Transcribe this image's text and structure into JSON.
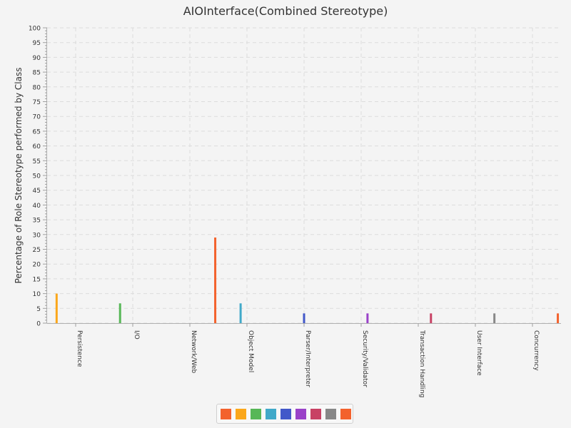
{
  "chart_data": {
    "type": "bar",
    "title": "AIOInterface(Combined Stereotype)",
    "xlabel": "",
    "ylabel": "Percentage of Role Stereotype performed by Class",
    "ylim": [
      0,
      100
    ],
    "y_major_step": 5,
    "y_minor_step": 1,
    "grid": true,
    "legend": "bottom-center",
    "categories": [
      "Persistence",
      "I/O",
      "Network/Web",
      "Object Model",
      "Parser/Interpreter",
      "Security/Validator",
      "Transaction Handling",
      "User Interface",
      "Concurrency"
    ],
    "series": [
      {
        "color": "#f3622d",
        "values": [
          0,
          0,
          0,
          0,
          0,
          0,
          0,
          0,
          0
        ]
      },
      {
        "color": "#fba71b",
        "values": [
          10,
          0,
          0,
          0,
          0,
          0,
          0,
          0,
          0
        ]
      },
      {
        "color": "#57b757",
        "values": [
          0,
          6.7,
          0,
          0,
          0,
          0,
          0,
          0,
          0
        ]
      },
      {
        "color": "#41a9c9",
        "values": [
          0,
          0,
          0,
          6.7,
          0,
          0,
          0,
          0,
          0
        ]
      },
      {
        "color": "#4258c9",
        "values": [
          0,
          0,
          0,
          0,
          3.3,
          0,
          0,
          0,
          0
        ]
      },
      {
        "color": "#9a42c8",
        "values": [
          0,
          0,
          0,
          0,
          0,
          3.3,
          0,
          0,
          0
        ]
      },
      {
        "color": "#c84164",
        "values": [
          0,
          0,
          0,
          0,
          0,
          0,
          3.3,
          0,
          0
        ]
      },
      {
        "color": "#888888",
        "values": [
          0,
          0,
          0,
          0,
          0,
          0,
          0,
          3.3,
          0
        ]
      },
      {
        "color": "#f3622d",
        "values": [
          0,
          0,
          29,
          0,
          0,
          0,
          0,
          0,
          3.3
        ]
      }
    ]
  }
}
